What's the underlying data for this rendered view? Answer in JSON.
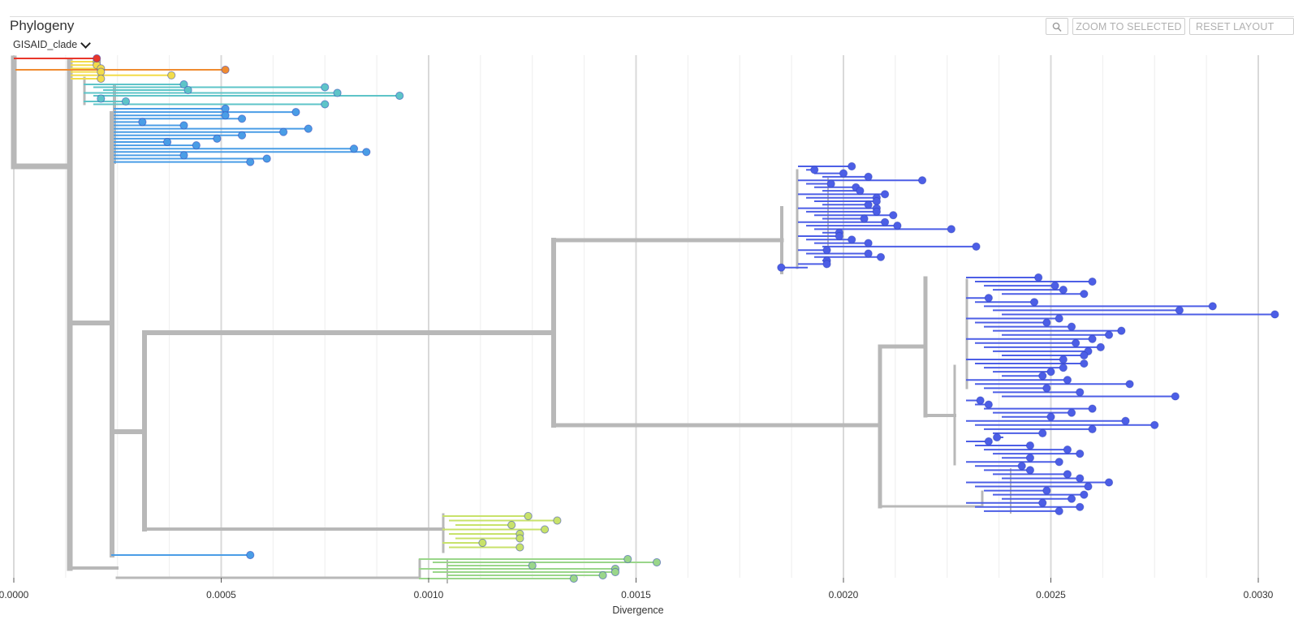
{
  "panel": {
    "title": "Phylogeny",
    "color_by": "GISAID_clade",
    "zoom_icon": "magnifier-icon",
    "zoom_to_selected_label": "ZOOM TO SELECTED",
    "reset_layout_label": "RESET LAYOUT"
  },
  "axis": {
    "label": "Divergence",
    "ticks": [
      "0.0000",
      "0.0005",
      "0.0010",
      "0.0015",
      "0.0020",
      "0.0025",
      "0.0030"
    ],
    "range": [
      0,
      0.003
    ]
  },
  "colors": {
    "branch_gray": "#b8b8b8",
    "clade_purple": "#4c5ee6",
    "clade_blue": "#4a9de6",
    "clade_teal": "#5ec4c8",
    "clade_yellow": "#f2dc49",
    "clade_orange": "#f08b30",
    "clade_red": "#e8362a",
    "clade_green": "#9ad68a",
    "clade_lightgreen": "#c8e26a",
    "clade_gray": "#d0d0d0"
  },
  "chart_data": {
    "type": "phylogenetic-tree",
    "xlabel": "Divergence",
    "xlim": [
      0,
      0.003
    ],
    "grid": true,
    "clusters": [
      {
        "name": "",
        "color": "clade_purple",
        "tips_x": [
          0.00202,
          0.00193,
          0.002,
          0.00206,
          0.00219,
          0.00197,
          0.00203,
          0.00204,
          0.0021,
          0.00208,
          0.00208,
          0.00206,
          0.00208,
          0.00208,
          0.00212,
          0.00205,
          0.0021,
          0.00213,
          0.00226,
          0.00199,
          0.00199,
          0.00202,
          0.00206,
          0.00232,
          0.00196,
          0.00206,
          0.00209,
          0.00196,
          0.00196,
          0.00185
        ]
      },
      {
        "name": "",
        "color": "clade_purple",
        "tips_x": [
          0.00247,
          0.0026,
          0.00251,
          0.00253,
          0.00258,
          0.00235,
          0.00246,
          0.00289,
          0.00281,
          0.00304,
          0.00252,
          0.00249,
          0.00255,
          0.00267,
          0.00264,
          0.0026,
          0.00256,
          0.00262,
          0.00259,
          0.00258,
          0.00253,
          0.00258,
          0.00253,
          0.0025,
          0.00248,
          0.00254,
          0.00269,
          0.00249,
          0.00257,
          0.0028,
          0.00233,
          0.00235,
          0.0026,
          0.00255,
          0.0025,
          0.00268,
          0.00275,
          0.0026,
          0.00248,
          0.00237,
          0.00235,
          0.00245,
          0.00254,
          0.00257,
          0.00245,
          0.00252,
          0.00243,
          0.00245,
          0.00254,
          0.00257,
          0.00264,
          0.00259,
          0.00249,
          0.00258,
          0.00255,
          0.00248,
          0.00257,
          0.00252
        ]
      },
      {
        "name": "",
        "color": "clade_blue",
        "tips_x": [
          0.00051,
          0.00068,
          0.00051,
          0.00055,
          0.00031,
          0.00041,
          0.00071,
          0.00065,
          0.00055,
          0.00049,
          0.00037,
          0.00044,
          0.00082,
          0.00085,
          0.00041,
          0.00061,
          0.00057
        ]
      },
      {
        "name": "",
        "color": "clade_teal",
        "tips_x": [
          0.00041,
          0.00075,
          0.00042,
          0.00078,
          0.00093,
          0.00021,
          0.00027,
          0.00075
        ]
      },
      {
        "name": "",
        "color": "clade_yellow",
        "tips_x": [
          0.0002,
          0.0002,
          0.00021,
          0.00021,
          0.00038,
          0.00021
        ]
      },
      {
        "name": "",
        "color": "clade_orange",
        "tips_x": [
          0.00051
        ]
      },
      {
        "name": "",
        "color": "clade_red",
        "tips_x": [
          0.0002
        ]
      },
      {
        "name": "",
        "color": "clade_lightgreen",
        "tips_x": [
          0.00124,
          0.00131,
          0.0012,
          0.00128,
          0.00122,
          0.00122,
          0.00113,
          0.00122
        ]
      },
      {
        "name": "",
        "color": "clade_green",
        "tips_x": [
          0.00148,
          0.00155,
          0.00125,
          0.00145,
          0.00145,
          0.00142,
          0.00135
        ]
      }
    ]
  }
}
